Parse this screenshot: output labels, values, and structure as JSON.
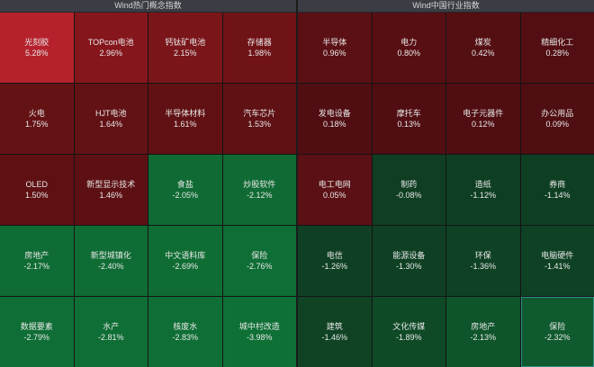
{
  "left": {
    "title": "Wind热门概念指数",
    "tiles": [
      {
        "name": "光刻胶",
        "pct": "5.28%",
        "color": "#b5222c"
      },
      {
        "name": "TOPcon电池",
        "pct": "2.96%",
        "color": "#85161c"
      },
      {
        "name": "钙钛矿电池",
        "pct": "2.15%",
        "color": "#7a1519"
      },
      {
        "name": "存储器",
        "pct": "1.98%",
        "color": "#701317"
      },
      {
        "name": "火电",
        "pct": "1.75%",
        "color": "#651215"
      },
      {
        "name": "HJT电池",
        "pct": "1.64%",
        "color": "#621114"
      },
      {
        "name": "半导体材料",
        "pct": "1.61%",
        "color": "#611114"
      },
      {
        "name": "汽车芯片",
        "pct": "1.53%",
        "color": "#5f1114"
      },
      {
        "name": "OLED",
        "pct": "1.50%",
        "color": "#5e1013"
      },
      {
        "name": "新型显示技术",
        "pct": "1.46%",
        "color": "#5d1013"
      },
      {
        "name": "食盐",
        "pct": "-2.05%",
        "color": "#0f6a33"
      },
      {
        "name": "炒股软件",
        "pct": "-2.12%",
        "color": "#0f6b33"
      },
      {
        "name": "房地产",
        "pct": "-2.17%",
        "color": "#0f6c34"
      },
      {
        "name": "新型城镇化",
        "pct": "-2.40%",
        "color": "#0f6c34"
      },
      {
        "name": "中文语料库",
        "pct": "-2.69%",
        "color": "#0f6d34"
      },
      {
        "name": "保险",
        "pct": "-2.76%",
        "color": "#0f6e35"
      },
      {
        "name": "数据要素",
        "pct": "-2.79%",
        "color": "#0f6e35"
      },
      {
        "name": "水产",
        "pct": "-2.81%",
        "color": "#0f6e35"
      },
      {
        "name": "核废水",
        "pct": "-2.83%",
        "color": "#0f6e35"
      },
      {
        "name": "城中村改造",
        "pct": "-3.98%",
        "color": "#0f7036"
      }
    ]
  },
  "right": {
    "title": "Wind中国行业指数",
    "tiles": [
      {
        "name": "半导体",
        "pct": "0.96%",
        "color": "#5a1014"
      },
      {
        "name": "电力",
        "pct": "0.80%",
        "color": "#580f13"
      },
      {
        "name": "煤炭",
        "pct": "0.42%",
        "color": "#540f12"
      },
      {
        "name": "精细化工",
        "pct": "0.28%",
        "color": "#520e12"
      },
      {
        "name": "发电设备",
        "pct": "0.18%",
        "color": "#510e12"
      },
      {
        "name": "摩托车",
        "pct": "0.13%",
        "color": "#500e12"
      },
      {
        "name": "电子元器件",
        "pct": "0.12%",
        "color": "#500e12"
      },
      {
        "name": "办公用品",
        "pct": "0.09%",
        "color": "#4f0e11"
      },
      {
        "name": "电工电网",
        "pct": "0.05%",
        "color": "#5a1014"
      },
      {
        "name": "制药",
        "pct": "-0.08%",
        "color": "#0f3e22"
      },
      {
        "name": "造纸",
        "pct": "-1.12%",
        "color": "#0f3f23"
      },
      {
        "name": "券商",
        "pct": "-1.14%",
        "color": "#0f3f23"
      },
      {
        "name": "电信",
        "pct": "-1.26%",
        "color": "#0f4023"
      },
      {
        "name": "能源设备",
        "pct": "-1.30%",
        "color": "#0f4023"
      },
      {
        "name": "环保",
        "pct": "-1.36%",
        "color": "#0f4124"
      },
      {
        "name": "电脑硬件",
        "pct": "-1.41%",
        "color": "#0f4224"
      },
      {
        "name": "建筑",
        "pct": "-1.46%",
        "color": "#0f4324"
      },
      {
        "name": "文化传媒",
        "pct": "-1.89%",
        "color": "#0f4a27"
      },
      {
        "name": "房地产",
        "pct": "-2.13%",
        "color": "#0f552b"
      },
      {
        "name": "保险",
        "pct": "-2.32%",
        "color": "#0f5a2e",
        "selected": true
      }
    ]
  }
}
